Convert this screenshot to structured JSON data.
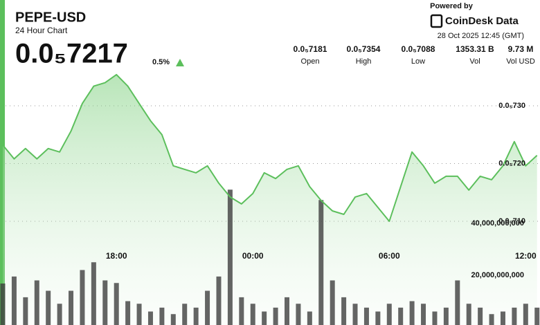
{
  "header": {
    "price": "0.0₅7217",
    "change": "0.5%",
    "powered_by": "Powered by",
    "brand": "CoinDesk Data",
    "timestamp": "28 Oct 2025 12:45 (GMT)",
    "stats": [
      {
        "value": "0.0₅7181",
        "label": "Open"
      },
      {
        "value": "0.0₅7354",
        "label": "High"
      },
      {
        "value": "0.0₅7088",
        "label": "Low"
      },
      {
        "value": "1353.31 B",
        "label": "Vol"
      },
      {
        "value": "9.73 M",
        "label": "Vol USD"
      }
    ]
  },
  "chart_data": {
    "type": "line",
    "title": "PEPE-USD",
    "subtitle": "24 Hour Chart",
    "categories": [
      null,
      null,
      null,
      null,
      null,
      null,
      null,
      null,
      null,
      null,
      "18:00",
      null,
      null,
      null,
      null,
      null,
      null,
      null,
      null,
      null,
      null,
      null,
      "00:00",
      null,
      null,
      null,
      null,
      null,
      null,
      null,
      null,
      null,
      null,
      null,
      "06:00",
      null,
      null,
      null,
      null,
      null,
      null,
      null,
      null,
      null,
      null,
      null,
      "12:00",
      null
    ],
    "series": [
      {
        "type": "line",
        "color": "#5cbf5c",
        "values": [
          7.232e-06,
          7.208e-06,
          7.226e-06,
          7.208e-06,
          7.226e-06,
          7.22e-06,
          7.256e-06,
          7.304e-06,
          7.334e-06,
          7.34e-06,
          7.354e-06,
          7.334e-06,
          7.304e-06,
          7.274e-06,
          7.25e-06,
          7.196e-06,
          7.19e-06,
          7.184e-06,
          7.196e-06,
          7.166e-06,
          7.142e-06,
          7.13e-06,
          7.148e-06,
          7.184e-06,
          7.174e-06,
          7.19e-06,
          7.196e-06,
          7.16e-06,
          7.136e-06,
          7.118e-06,
          7.112e-06,
          7.142e-06,
          7.148e-06,
          7.124e-06,
          7.1e-06,
          7.16e-06,
          7.22e-06,
          7.196e-06,
          7.166e-06,
          7.178e-06,
          7.178e-06,
          7.154e-06,
          7.178e-06,
          7.172e-06,
          7.196e-06,
          7.238e-06,
          7.196e-06,
          7.214e-06
        ]
      },
      {
        "type": "bar",
        "axis": "y2",
        "color": "#3f3f3f",
        "values": [
          16800000000,
          19500000000,
          11500000000,
          18000000000,
          14000000000,
          9000000000,
          14000000000,
          22000000000,
          25000000000,
          18000000000,
          17000000000,
          10000000000,
          9000000000,
          6000000000,
          7500000000,
          5000000000,
          9000000000,
          7500000000,
          14000000000,
          19500000000,
          53000000000,
          11500000000,
          9000000000,
          6000000000,
          7500000000,
          11500000000,
          9000000000,
          6000000000,
          49000000000,
          18000000000,
          11500000000,
          9000000000,
          7500000000,
          6000000000,
          9000000000,
          7500000000,
          10000000000,
          9000000000,
          6000000000,
          7500000000,
          18000000000,
          9000000000,
          7500000000,
          5000000000,
          6000000000,
          7500000000,
          9000000000,
          7500000000
        ]
      }
    ],
    "ylim": [
      7e-06,
      7.4e-06
    ],
    "yticks": [
      {
        "value": 7.1e-06,
        "label": "0.0₅710"
      },
      {
        "value": 7.2e-06,
        "label": "0.0₅720"
      },
      {
        "value": 7.3e-06,
        "label": "0.0₅730"
      }
    ],
    "y2lim": [
      0,
      120000000000
    ],
    "y2ticks": [
      {
        "value": 20000000000,
        "label": "20,000,000,000"
      },
      {
        "value": 40000000000,
        "label": "40,000,000,000"
      }
    ],
    "grid": true
  }
}
